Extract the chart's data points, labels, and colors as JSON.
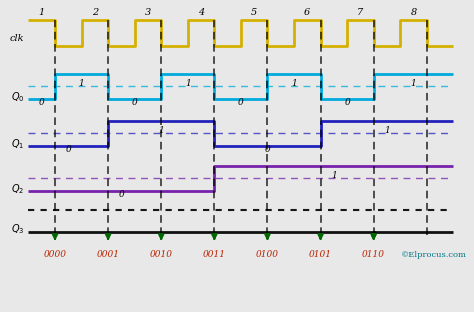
{
  "background_color": "#e8e8e8",
  "clk_color": "#d4b000",
  "Q0_color": "#00aadd",
  "Q1_color": "#2222bb",
  "Q2_color": "#7722aa",
  "Q3_color": "#111111",
  "green_color": "#006600",
  "red_text_color": "#bb2200",
  "cyan_text_color": "#007788",
  "binary_labels": [
    "0000",
    "0001",
    "0010",
    "0011",
    "0100",
    "0101",
    "0110"
  ],
  "clock_numbers": [
    "1",
    "2",
    "3",
    "4",
    "5",
    "6",
    "7",
    "8"
  ],
  "figsize": [
    4.74,
    3.12
  ],
  "dpi": 100,
  "xlim": [
    0,
    8.3
  ],
  "ylim": [
    -2.8,
    11.2
  ]
}
